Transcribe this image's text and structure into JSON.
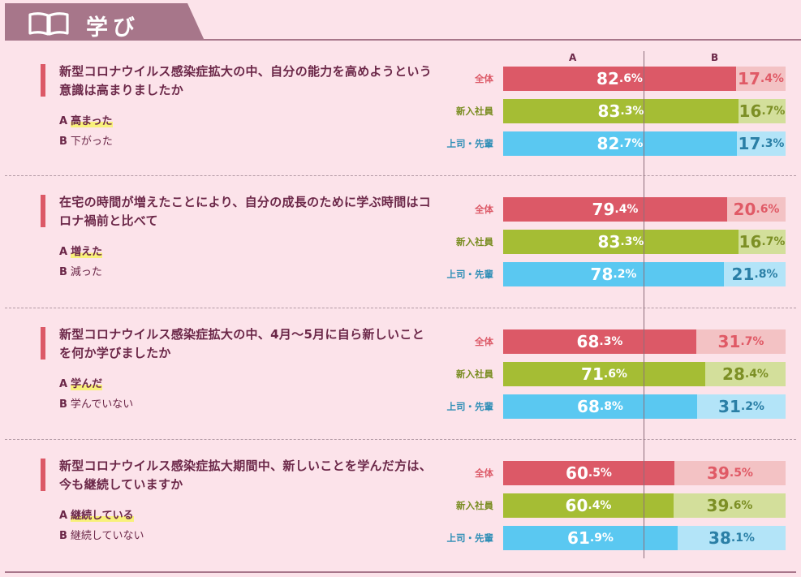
{
  "header": {
    "title": "学び",
    "icon": "book-icon"
  },
  "columns": {
    "a": "A",
    "b": "B"
  },
  "groups": [
    {
      "key": "all",
      "label": "全体",
      "color": "#dc5967",
      "light": "#f3c2c4",
      "labelColor": "#dc5967",
      "bTextColor": "#e05a66"
    },
    {
      "key": "new",
      "label": "新入社員",
      "color": "#a5bd34",
      "light": "#d3df9b",
      "labelColor": "#7a8d22",
      "bTextColor": "#7c8f25"
    },
    {
      "key": "senior",
      "label": "上司・先輩",
      "color": "#5ac8f1",
      "light": "#b3e4f8",
      "labelColor": "#2e8eb6",
      "bTextColor": "#2a7fa6"
    }
  ],
  "questions": [
    {
      "text": "新型コロナウイルス感染症拡大の中、自分の能力を高めようという意識は高まりましたか",
      "option_a": {
        "letter": "A",
        "text": "高まった"
      },
      "option_b": {
        "letter": "B",
        "text": "下がった"
      }
    },
    {
      "text": "在宅の時間が増えたことにより、自分の成長のために学ぶ時間はコロナ禍前と比べて",
      "option_a": {
        "letter": "A",
        "text": "増えた"
      },
      "option_b": {
        "letter": "B",
        "text": "減った"
      }
    },
    {
      "text": "新型コロナウイルス感染症拡大の中、4月〜5月に自ら新しいことを何か学びましたか",
      "option_a": {
        "letter": "A",
        "text": "学んだ"
      },
      "option_b": {
        "letter": "B",
        "text": "学んでいない"
      }
    },
    {
      "text": "新型コロナウイルス感染症拡大期間中、新しいことを学んだ方は、今も継続していますか",
      "option_a": {
        "letter": "A",
        "text": "継続している"
      },
      "option_b": {
        "letter": "B",
        "text": "継続していない"
      }
    }
  ],
  "chart_data": {
    "type": "bar",
    "stacked_percent": true,
    "series_names": [
      "A",
      "B"
    ],
    "categories": [
      "全体",
      "新入社員",
      "上司・先輩"
    ],
    "questions": [
      {
        "values_a": [
          82.6,
          83.3,
          82.7
        ],
        "values_b": [
          17.4,
          16.7,
          17.3
        ]
      },
      {
        "values_a": [
          79.4,
          83.3,
          78.2
        ],
        "values_b": [
          20.6,
          16.7,
          21.8
        ]
      },
      {
        "values_a": [
          68.3,
          71.6,
          68.8
        ],
        "values_b": [
          31.7,
          28.4,
          31.2
        ]
      },
      {
        "values_a": [
          60.5,
          60.4,
          61.9
        ],
        "values_b": [
          39.5,
          39.6,
          38.1
        ]
      }
    ]
  }
}
